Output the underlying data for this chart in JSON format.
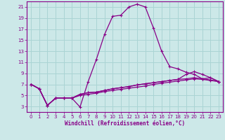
{
  "xlabel": "Windchill (Refroidissement éolien,°C)",
  "background_color": "#cce8e8",
  "grid_color": "#aad4d4",
  "line_color": "#880088",
  "x_ticks": [
    0,
    1,
    2,
    3,
    4,
    5,
    6,
    7,
    8,
    9,
    10,
    11,
    12,
    13,
    14,
    15,
    16,
    17,
    18,
    19,
    20,
    21,
    22,
    23
  ],
  "y_ticks": [
    3,
    5,
    7,
    9,
    11,
    13,
    15,
    17,
    19,
    21
  ],
  "xlim": [
    -0.5,
    23.5
  ],
  "ylim": [
    2.0,
    22.0
  ],
  "series": [
    [
      7.0,
      6.2,
      3.2,
      4.5,
      4.5,
      4.5,
      2.9,
      7.5,
      11.5,
      16.0,
      19.3,
      19.5,
      21.0,
      21.5,
      21.0,
      17.2,
      13.0,
      10.2,
      9.8,
      9.2,
      8.8,
      8.0,
      8.2,
      7.5
    ],
    [
      7.0,
      6.2,
      3.2,
      4.5,
      4.5,
      4.5,
      5.2,
      5.5,
      5.6,
      5.9,
      6.2,
      6.4,
      6.6,
      6.9,
      7.1,
      7.3,
      7.5,
      7.7,
      7.9,
      8.0,
      8.2,
      8.0,
      7.8,
      7.5
    ],
    [
      7.0,
      6.2,
      3.2,
      4.5,
      4.5,
      4.5,
      5.2,
      5.5,
      5.6,
      5.9,
      6.2,
      6.4,
      6.6,
      6.9,
      7.1,
      7.3,
      7.5,
      7.7,
      7.9,
      8.8,
      9.3,
      8.8,
      8.2,
      7.5
    ],
    [
      7.0,
      6.2,
      3.2,
      4.5,
      4.5,
      4.5,
      5.0,
      5.2,
      5.4,
      5.7,
      5.9,
      6.1,
      6.3,
      6.5,
      6.7,
      7.0,
      7.2,
      7.4,
      7.6,
      7.8,
      8.0,
      7.9,
      7.7,
      7.5
    ]
  ]
}
